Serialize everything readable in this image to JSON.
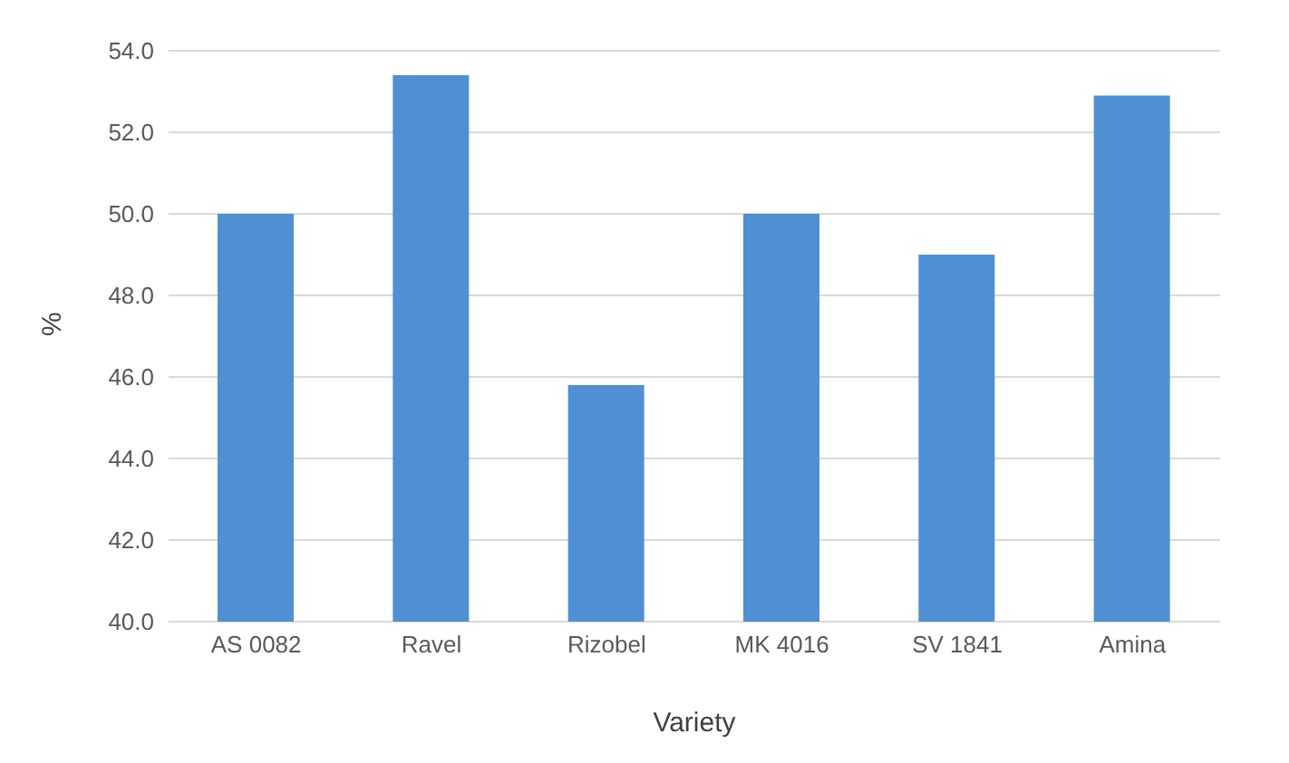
{
  "chart_data": {
    "type": "bar",
    "xlabel": "Variety",
    "ylabel": "%",
    "categories": [
      "AS 0082",
      "Ravel",
      "Rizobel",
      "MK 4016",
      "SV 1841",
      "Amina"
    ],
    "values": [
      50.0,
      53.4,
      45.8,
      50.0,
      49.0,
      52.9
    ],
    "color": "#4f8fd3",
    "ylim": [
      40,
      54
    ],
    "yticks": [
      {
        "value": 40,
        "label": "40.0"
      },
      {
        "value": 42,
        "label": "42.0"
      },
      {
        "value": 44,
        "label": "44.0"
      },
      {
        "value": 46,
        "label": "46.0"
      },
      {
        "value": 48,
        "label": "48.0"
      },
      {
        "value": 50,
        "label": "50.0"
      },
      {
        "value": 52,
        "label": "52.0"
      },
      {
        "value": 54,
        "label": "54.0"
      }
    ],
    "grid": "y"
  }
}
